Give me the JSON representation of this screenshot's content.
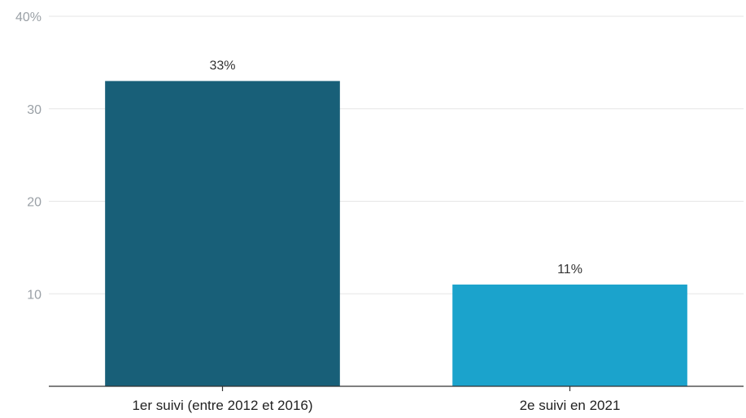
{
  "chart_data": {
    "type": "bar",
    "title": "",
    "xlabel": "",
    "ylabel": "",
    "ylim": [
      0,
      40
    ],
    "yticks": [
      {
        "value": 10,
        "label": "10"
      },
      {
        "value": 20,
        "label": "20"
      },
      {
        "value": 30,
        "label": "30"
      },
      {
        "value": 40,
        "label": "40%"
      }
    ],
    "grid": true,
    "categories": [
      "1er suivi (entre 2012 et 2016)",
      "2e suivi en 2021"
    ],
    "values": [
      33,
      11
    ],
    "data_labels": [
      "33%",
      "11%"
    ],
    "colors": [
      "#185f78",
      "#1ba3cc"
    ]
  }
}
